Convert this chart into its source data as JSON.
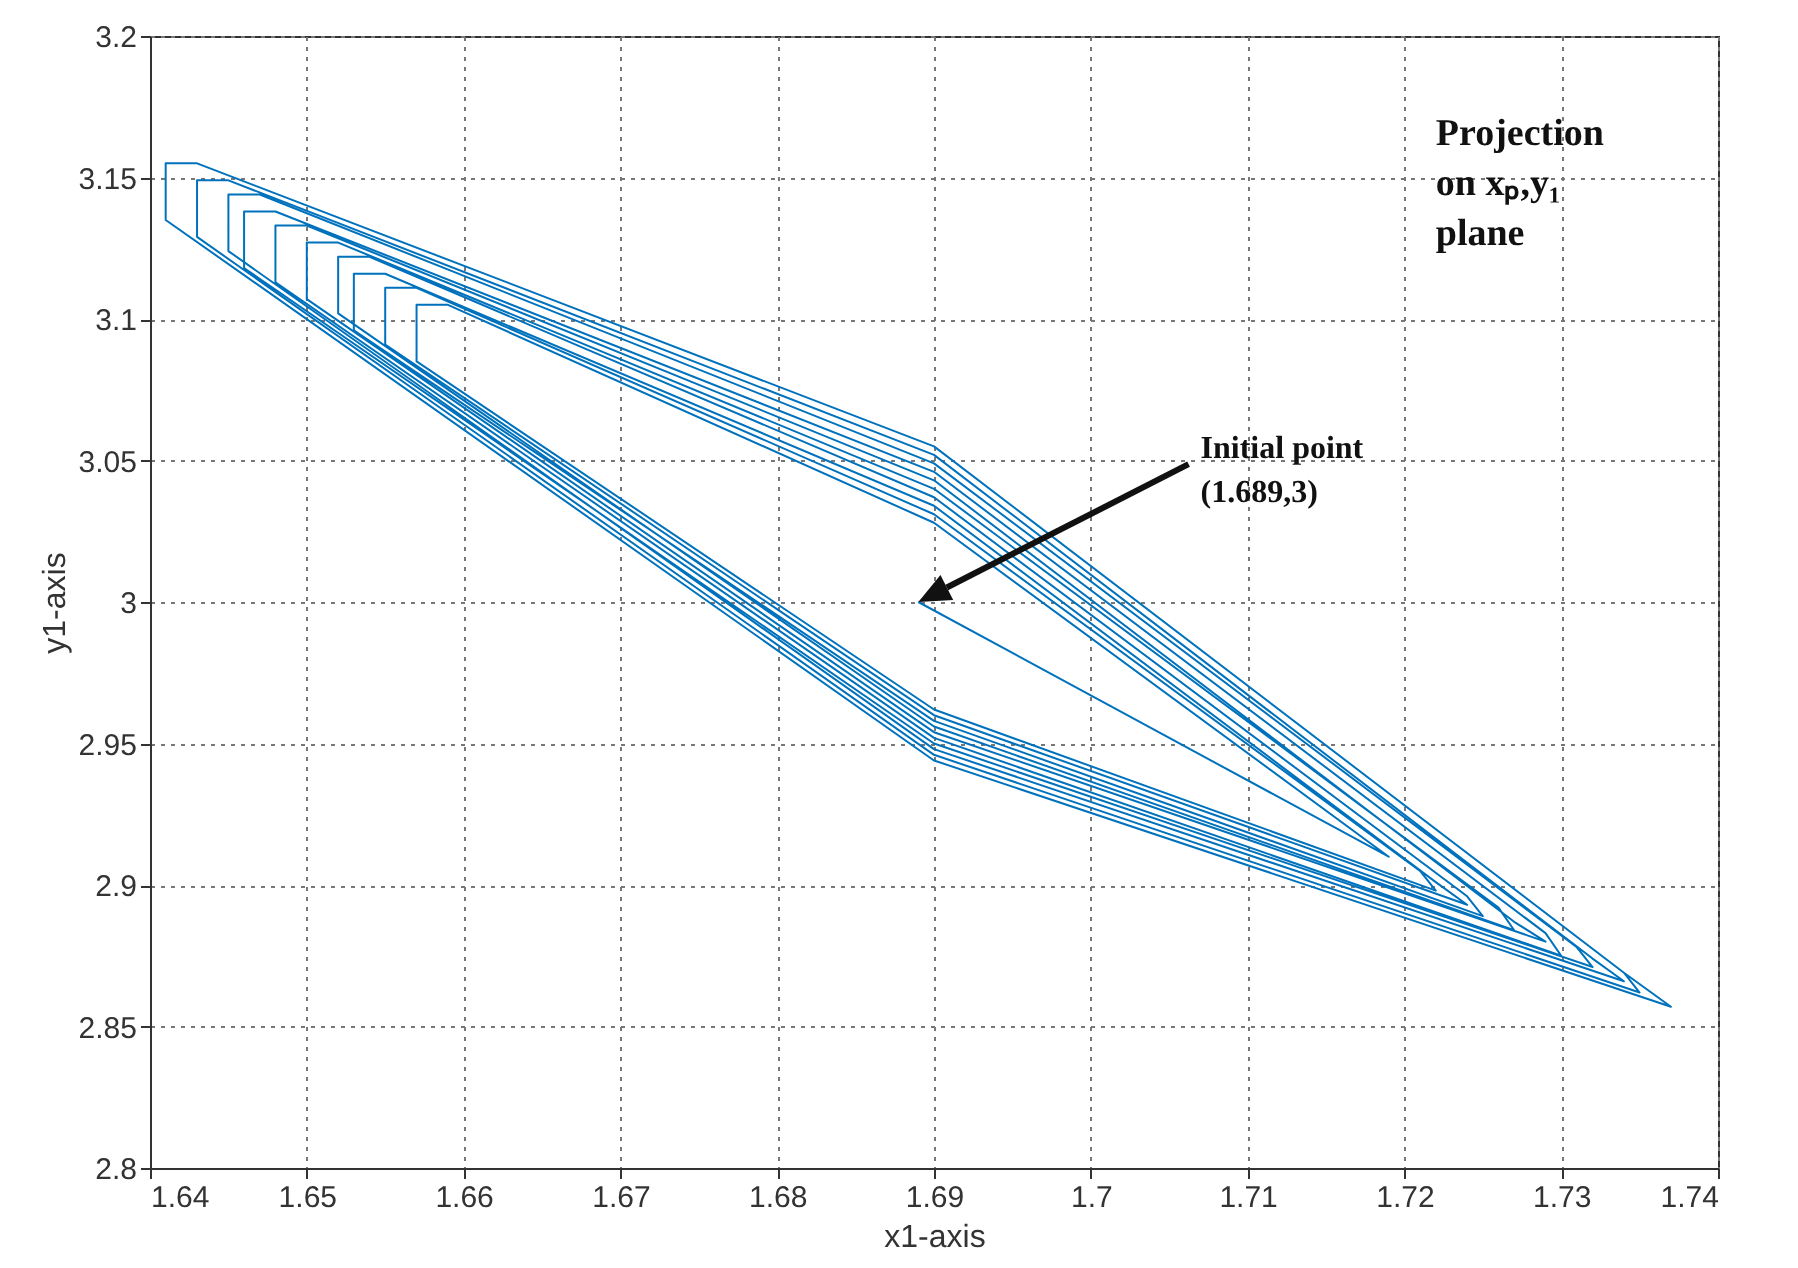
{
  "chart_data": {
    "type": "line",
    "xlabel": "x1-axis",
    "ylabel": "y1-axis",
    "xlim": [
      1.64,
      1.74
    ],
    "xticks": [
      1.64,
      1.65,
      1.66,
      1.67,
      1.68,
      1.69,
      1.7,
      1.71,
      1.72,
      1.73,
      1.74
    ],
    "ylim": [
      2.8,
      3.2
    ],
    "yticks": [
      2.8,
      2.85,
      2.9,
      2.95,
      3,
      3.05,
      3.1,
      3.15,
      3.2
    ],
    "grid": true,
    "line_style": "solid",
    "annotations": [
      "Initial point\n(1.689,3)",
      "Projection\non xₚ,y₁\nplane"
    ],
    "series": [
      {
        "color": "#0072bd",
        "x": [
          1.689,
          1.719,
          1.69,
          1.659,
          1.657,
          1.657,
          1.69,
          1.722,
          1.721,
          1.69,
          1.657,
          1.655,
          1.655,
          1.69,
          1.724,
          1.722,
          1.69,
          1.655,
          1.653,
          1.653,
          1.69,
          1.725,
          1.724,
          1.69,
          1.654,
          1.652,
          1.652,
          1.69,
          1.727,
          1.726,
          1.69,
          1.652,
          1.65,
          1.65,
          1.69,
          1.729,
          1.727,
          1.69,
          1.65,
          1.648,
          1.648,
          1.69,
          1.73,
          1.729,
          1.69,
          1.648,
          1.646,
          1.646,
          1.69,
          1.732,
          1.731,
          1.69,
          1.647,
          1.645,
          1.645,
          1.69,
          1.734,
          1.732,
          1.69,
          1.645,
          1.643,
          1.643,
          1.69,
          1.735,
          1.734,
          1.69,
          1.643,
          1.641,
          1.641,
          1.69,
          1.737,
          1.734
        ],
        "values": [
          3,
          2.91,
          3.028,
          3.105,
          3.105,
          3.085,
          2.962,
          2.898,
          2.905,
          3.031,
          3.111,
          3.111,
          3.091,
          2.96,
          2.893,
          2.901,
          3.034,
          3.116,
          3.116,
          3.096,
          2.958,
          2.889,
          2.896,
          3.037,
          3.122,
          3.122,
          3.102,
          2.956,
          2.884,
          2.892,
          3.04,
          3.127,
          3.127,
          3.107,
          2.954,
          2.88,
          2.887,
          3.043,
          3.133,
          3.133,
          3.113,
          2.952,
          2.875,
          2.883,
          3.046,
          3.138,
          3.138,
          3.118,
          2.95,
          2.871,
          2.878,
          3.049,
          3.144,
          3.144,
          3.124,
          2.948,
          2.866,
          2.874,
          3.052,
          3.149,
          3.149,
          3.129,
          2.946,
          2.862,
          2.869,
          3.055,
          3.155,
          3.155,
          3.135,
          2.944,
          2.857,
          2.869
        ]
      }
    ]
  }
}
